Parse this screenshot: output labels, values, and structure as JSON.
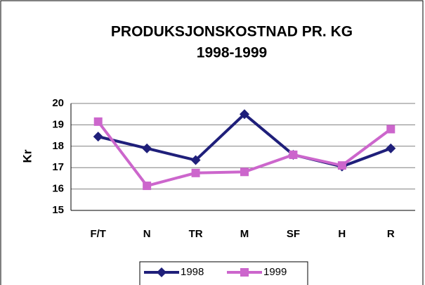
{
  "chart_data": {
    "type": "line",
    "title": "PRODUKSJONSKOSTNAD PR. KG",
    "subtitle": "1998-1999",
    "y_label": "Kr",
    "categories": [
      "F/T",
      "N",
      "TR",
      "M",
      "SF",
      "H",
      "R"
    ],
    "series": [
      {
        "name": "1998",
        "color": "#1f1f7a",
        "marker": "diamond",
        "values": [
          18.45,
          17.9,
          17.35,
          19.5,
          17.6,
          17.05,
          17.9
        ]
      },
      {
        "name": "1999",
        "color": "#cc66cc",
        "marker": "square",
        "values": [
          19.15,
          16.15,
          16.75,
          16.8,
          17.6,
          17.1,
          18.8
        ]
      }
    ],
    "ylim": [
      15,
      20
    ],
    "yticks": [
      15,
      16,
      17,
      18,
      19,
      20
    ],
    "grid": true,
    "legend": "bottom"
  }
}
